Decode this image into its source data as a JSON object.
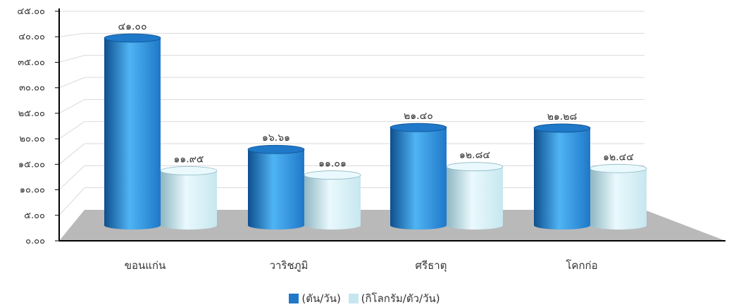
{
  "colors": {
    "series1": "#1f78c8",
    "series1_light": "#4fb4f4",
    "series1_dark": "#0f4f8e",
    "series2": "#c6e7ef",
    "series2_light": "#eaf9fd",
    "series2_dark": "#8fb7c3",
    "floor": "#b9b9b9",
    "grid": "#d9d9d9",
    "axis": "#000000",
    "text": "#333333"
  },
  "chart_data": {
    "type": "bar",
    "style": "3d-cylinder",
    "categories": [
      "ขอนแก่น",
      "วาริชภูมิ",
      "ศรีธาตุ",
      "โคกก่อ"
    ],
    "series": [
      {
        "name": "(ตัน/วัน)",
        "values": [
          41.0,
          16.61,
          21.4,
          21.28
        ],
        "labels": [
          "๔๑.๐๐",
          "๑๖.๖๑",
          "๒๑.๔๐",
          "๒๑.๒๘"
        ]
      },
      {
        "name": "(กิโลกรัม/ตัว/วัน)",
        "values": [
          11.95,
          11.01,
          12.84,
          12.44
        ],
        "labels": [
          "๑๑.๙๕",
          "๑๑.๐๑",
          "๑๒.๘๔",
          "๑๒.๔๔"
        ]
      }
    ],
    "ylim": [
      0,
      45
    ],
    "y_ticks": [
      0,
      5,
      10,
      15,
      20,
      25,
      30,
      35,
      40,
      45
    ],
    "y_tick_labels": [
      "๐.๐๐",
      "๕.๐๐",
      "๑๐.๐๐",
      "๑๕.๐๐",
      "๒๐.๐๐",
      "๒๕.๐๐",
      "๓๐.๐๐",
      "๓๕.๐๐",
      "๔๐.๐๐",
      "๔๕.๐๐"
    ],
    "grid": true,
    "legend_position": "bottom-center",
    "title": "",
    "xlabel": "",
    "ylabel": ""
  }
}
